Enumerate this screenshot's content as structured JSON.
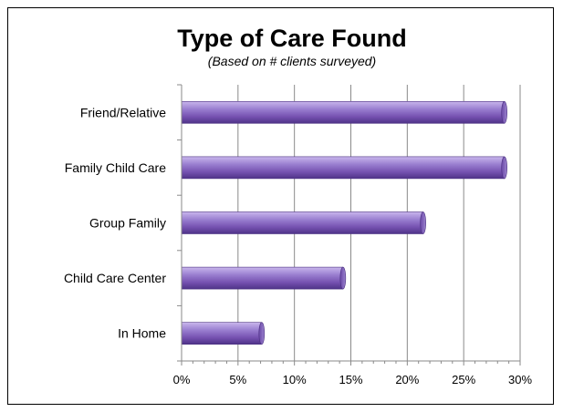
{
  "chart_data": {
    "type": "bar",
    "orientation": "horizontal",
    "title": "Type of Care Found",
    "subtitle": "(Based on # clients surveyed)",
    "categories": [
      "Friend/Relative",
      "Family Child Care",
      "Group Family",
      "Child Care Center",
      "In Home"
    ],
    "values": [
      28.6,
      28.6,
      21.4,
      14.3,
      7.1
    ],
    "xlim": [
      0,
      30
    ],
    "xticks": [
      0,
      5,
      10,
      15,
      20,
      25,
      30
    ],
    "xtick_labels": [
      "0%",
      "5%",
      "10%",
      "15%",
      "20%",
      "25%",
      "30%"
    ],
    "grid": true,
    "bar_color": "#8e6fc0"
  }
}
